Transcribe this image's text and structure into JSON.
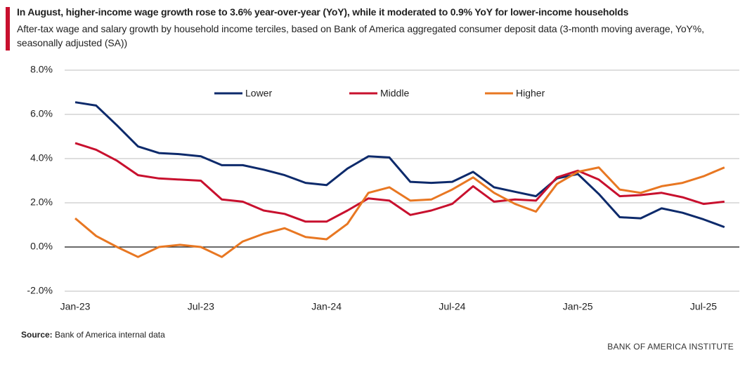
{
  "chart_data": {
    "type": "line",
    "title": "In August, higher-income wage growth rose to 3.6% year-over-year (YoY), while it moderated to 0.9% YoY for lower-income households",
    "subtitle": "After-tax wage and salary growth by household income terciles, based on Bank of America aggregated consumer deposit data (3-month moving average, YoY%, seasonally adjusted (SA))",
    "source_label": "Source:",
    "source": "Bank of America internal data",
    "brand": "BANK OF AMERICA INSTITUTE",
    "categories": [
      "Jan-23",
      null,
      null,
      null,
      null,
      null,
      "Jul-23",
      null,
      null,
      null,
      null,
      null,
      "Jan-24",
      null,
      null,
      null,
      null,
      null,
      "Jul-24",
      null,
      null,
      null,
      null,
      null,
      "Jan-25",
      null,
      null,
      null,
      null,
      null,
      "Jul-25",
      null
    ],
    "series": [
      {
        "name": "Lower",
        "color": "#0d2a6b",
        "values": [
          6.55,
          6.4,
          5.5,
          4.55,
          4.25,
          4.2,
          4.1,
          3.7,
          3.7,
          3.5,
          3.25,
          2.9,
          2.8,
          3.55,
          4.1,
          4.05,
          2.95,
          2.9,
          2.95,
          3.4,
          2.7,
          2.5,
          2.3,
          3.1,
          3.3,
          2.4,
          1.35,
          1.3,
          1.75,
          1.55,
          1.25,
          0.9
        ]
      },
      {
        "name": "Middle",
        "color": "#c8102e",
        "values": [
          4.7,
          4.4,
          3.9,
          3.25,
          3.1,
          3.05,
          3.0,
          2.15,
          2.05,
          1.65,
          1.5,
          1.15,
          1.15,
          1.65,
          2.2,
          2.1,
          1.45,
          1.65,
          1.95,
          2.75,
          2.05,
          2.15,
          2.1,
          3.15,
          3.45,
          3.05,
          2.3,
          2.35,
          2.45,
          2.25,
          1.95,
          2.05
        ]
      },
      {
        "name": "Higher",
        "color": "#e87722",
        "values": [
          1.3,
          0.5,
          0.0,
          -0.45,
          0.0,
          0.1,
          0.0,
          -0.45,
          0.25,
          0.6,
          0.85,
          0.45,
          0.35,
          1.05,
          2.45,
          2.7,
          2.1,
          2.15,
          2.6,
          3.15,
          2.45,
          1.95,
          1.6,
          2.85,
          3.4,
          3.6,
          2.6,
          2.45,
          2.75,
          2.9,
          3.2,
          3.6
        ]
      }
    ],
    "ylim": [
      -2,
      8
    ],
    "yticks": [
      {
        "value": -2,
        "label": "-2.0%"
      },
      {
        "value": 0,
        "label": "0.0%"
      },
      {
        "value": 2,
        "label": "2.0%"
      },
      {
        "value": 4,
        "label": "4.0%"
      },
      {
        "value": 6,
        "label": "6.0%"
      },
      {
        "value": 8,
        "label": "8.0%"
      }
    ],
    "grid": true,
    "legend": "top"
  }
}
